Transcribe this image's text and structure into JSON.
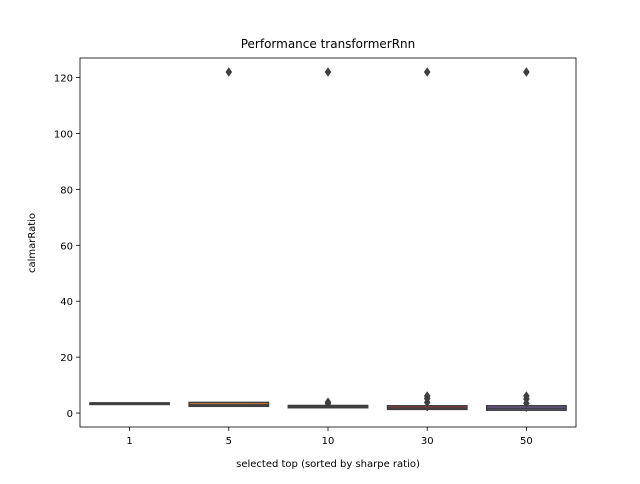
{
  "chart_data": {
    "type": "box",
    "title": "Performance transformerRnn",
    "xlabel": "selected top (sorted by sharpe ratio)",
    "ylabel": "calmarRatio",
    "ylim": [
      -5,
      127
    ],
    "yticks": [
      0,
      20,
      40,
      60,
      80,
      100,
      120
    ],
    "categories": [
      "1",
      "5",
      "10",
      "30",
      "50"
    ],
    "colors": [
      "#3a5f94",
      "#c87d3a",
      "#4a8a4a",
      "#b04040",
      "#7a5fa0"
    ],
    "grid": false,
    "legend": "none",
    "boxes": [
      {
        "category": "1",
        "q1": 3.6,
        "median": 3.6,
        "q3": 3.6,
        "whisker_low": 3.6,
        "whisker_high": 3.6,
        "outliers": []
      },
      {
        "category": "5",
        "q1": 2.4,
        "median": 2.9,
        "q3": 3.8,
        "whisker_low": 2.4,
        "whisker_high": 3.8,
        "outliers": [
          122
        ]
      },
      {
        "category": "10",
        "q1": 1.9,
        "median": 2.3,
        "q3": 2.7,
        "whisker_low": 1.6,
        "whisker_high": 3.0,
        "outliers": [
          122,
          3.4,
          3.9
        ]
      },
      {
        "category": "30",
        "q1": 1.3,
        "median": 1.8,
        "q3": 2.6,
        "whisker_low": 0.7,
        "whisker_high": 3.0,
        "outliers": [
          122,
          3.8,
          5.2,
          6.1
        ]
      },
      {
        "category": "50",
        "q1": 1.0,
        "median": 1.7,
        "q3": 2.6,
        "whisker_low": 0.5,
        "whisker_high": 3.0,
        "outliers": [
          122,
          3.5,
          5.0,
          6.1
        ]
      }
    ]
  }
}
